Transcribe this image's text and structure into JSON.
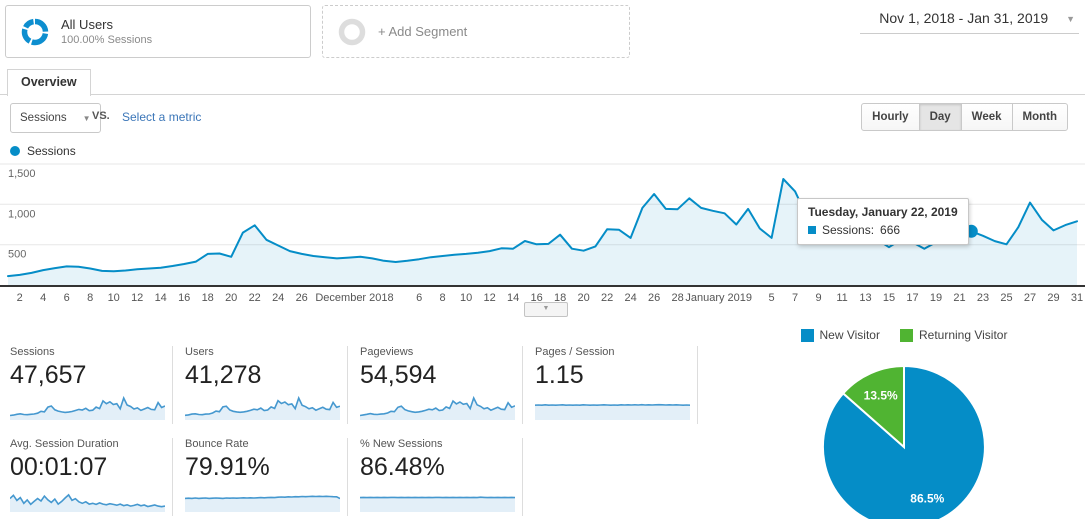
{
  "colors": {
    "chart_blue": "#058dc7",
    "pie_green": "#50b432",
    "link_blue": "#3b76b8",
    "spark_fill": "#e3eff8",
    "spark_line": "#4598cf"
  },
  "header": {
    "segment_all_users": {
      "title": "All Users",
      "subtitle": "100.00% Sessions"
    },
    "add_segment_label": "+ Add Segment",
    "date_range": "Nov 1, 2018 - Jan 31, 2019"
  },
  "tabs": {
    "overview": "Overview"
  },
  "controls": {
    "metric_dropdown": "Sessions",
    "vs_label": "VS.",
    "select_metric_link": "Select a metric",
    "granularity": [
      {
        "label": "Hourly"
      },
      {
        "label": "Day"
      },
      {
        "label": "Week"
      },
      {
        "label": "Month"
      }
    ],
    "granularity_active": "Day"
  },
  "timeline_legend": "Sessions",
  "tooltip": {
    "title": "Tuesday, January 22, 2019",
    "series": "Sessions:",
    "value": "666"
  },
  "chart_data": [
    {
      "type": "area",
      "title": "Sessions over time (daily)",
      "ylabel": "Sessions",
      "ylim": [
        0,
        1500
      ],
      "yticks": [
        500,
        1000,
        1500
      ],
      "ytick_labels": [
        "500",
        "1,000",
        "1,500"
      ],
      "x_start_date": "Nov 1, 2018",
      "x_end_date": "Jan 31, 2019",
      "grid": "horizontal",
      "legend_position": "top-left",
      "x_ticks": [
        {
          "d": 1,
          "label": "2"
        },
        {
          "d": 3,
          "label": "4"
        },
        {
          "d": 5,
          "label": "6"
        },
        {
          "d": 7,
          "label": "8"
        },
        {
          "d": 9,
          "label": "10"
        },
        {
          "d": 11,
          "label": "12"
        },
        {
          "d": 13,
          "label": "14"
        },
        {
          "d": 15,
          "label": "16"
        },
        {
          "d": 17,
          "label": "18"
        },
        {
          "d": 19,
          "label": "20"
        },
        {
          "d": 21,
          "label": "22"
        },
        {
          "d": 23,
          "label": "24"
        },
        {
          "d": 25,
          "label": "26"
        },
        {
          "d": 29.5,
          "label": "December 2018"
        },
        {
          "d": 35,
          "label": "6"
        },
        {
          "d": 37,
          "label": "8"
        },
        {
          "d": 39,
          "label": "10"
        },
        {
          "d": 41,
          "label": "12"
        },
        {
          "d": 43,
          "label": "14"
        },
        {
          "d": 45,
          "label": "16"
        },
        {
          "d": 47,
          "label": "18"
        },
        {
          "d": 49,
          "label": "20"
        },
        {
          "d": 51,
          "label": "22"
        },
        {
          "d": 53,
          "label": "24"
        },
        {
          "d": 55,
          "label": "26"
        },
        {
          "d": 57,
          "label": "28"
        },
        {
          "d": 60.5,
          "label": "January 2019"
        },
        {
          "d": 65,
          "label": "5"
        },
        {
          "d": 67,
          "label": "7"
        },
        {
          "d": 69,
          "label": "9"
        },
        {
          "d": 71,
          "label": "11"
        },
        {
          "d": 73,
          "label": "13"
        },
        {
          "d": 75,
          "label": "15"
        },
        {
          "d": 77,
          "label": "17"
        },
        {
          "d": 79,
          "label": "19"
        },
        {
          "d": 81,
          "label": "21"
        },
        {
          "d": 83,
          "label": "23"
        },
        {
          "d": 85,
          "label": "25"
        },
        {
          "d": 87,
          "label": "27"
        },
        {
          "d": 89,
          "label": "29"
        },
        {
          "d": 91,
          "label": "31"
        }
      ],
      "series": [
        {
          "name": "Sessions",
          "values": [
            110,
            125,
            150,
            185,
            210,
            230,
            225,
            205,
            175,
            170,
            180,
            195,
            205,
            215,
            235,
            260,
            290,
            385,
            390,
            350,
            650,
            740,
            560,
            490,
            420,
            385,
            360,
            345,
            330,
            340,
            350,
            330,
            300,
            285,
            300,
            320,
            345,
            360,
            375,
            385,
            400,
            420,
            455,
            450,
            545,
            505,
            510,
            623,
            450,
            425,
            478,
            690,
            685,
            584,
            956,
            1128,
            943,
            940,
            1075,
            956,
            920,
            889,
            750,
            943,
            700,
            584,
            1314,
            1160,
            850,
            743,
            660,
            560,
            640,
            590,
            560,
            470,
            560,
            530,
            450,
            530,
            620,
            690,
            666,
            610,
            544,
            505,
            717,
            1022,
            810,
            677,
            743,
            790
          ]
        }
      ],
      "highlight": {
        "date": "Tuesday, January 22, 2019",
        "value": 666,
        "day_index": 82
      }
    },
    {
      "type": "pie",
      "title": "New vs Returning Visitors",
      "legend_position": "top",
      "labels": [
        "New Visitor",
        "Returning Visitor"
      ],
      "values": [
        86.5,
        13.5
      ],
      "value_labels": [
        "86.5%",
        "13.5%"
      ],
      "colors": [
        "#058dc7",
        "#50b432"
      ]
    }
  ],
  "metrics": {
    "row1": [
      {
        "label": "Sessions",
        "value": "47,657",
        "spark": [
          0.08,
          0.1,
          0.14,
          0.17,
          0.13,
          0.12,
          0.14,
          0.16,
          0.2,
          0.3,
          0.27,
          0.52,
          0.58,
          0.38,
          0.31,
          0.27,
          0.24,
          0.26,
          0.29,
          0.34,
          0.4,
          0.37,
          0.46,
          0.33,
          0.36,
          0.52,
          0.44,
          0.85,
          0.7,
          0.8,
          0.66,
          0.7,
          0.43,
          1.0,
          0.63,
          0.55,
          0.42,
          0.48,
          0.35,
          0.42,
          0.5,
          0.4,
          0.38,
          0.76,
          0.5,
          0.58
        ]
      },
      {
        "label": "Users",
        "value": "41,278",
        "spark": [
          0.09,
          0.11,
          0.15,
          0.17,
          0.13,
          0.12,
          0.15,
          0.16,
          0.21,
          0.31,
          0.28,
          0.53,
          0.57,
          0.37,
          0.3,
          0.27,
          0.25,
          0.27,
          0.3,
          0.35,
          0.41,
          0.38,
          0.47,
          0.34,
          0.37,
          0.53,
          0.45,
          0.86,
          0.71,
          0.79,
          0.65,
          0.69,
          0.44,
          1.0,
          0.62,
          0.54,
          0.43,
          0.49,
          0.36,
          0.43,
          0.51,
          0.41,
          0.39,
          0.77,
          0.51,
          0.57
        ]
      },
      {
        "label": "Pageviews",
        "value": "54,594",
        "spark": [
          0.08,
          0.11,
          0.14,
          0.18,
          0.14,
          0.13,
          0.15,
          0.17,
          0.21,
          0.3,
          0.28,
          0.51,
          0.57,
          0.39,
          0.32,
          0.28,
          0.25,
          0.27,
          0.3,
          0.35,
          0.41,
          0.38,
          0.47,
          0.34,
          0.37,
          0.53,
          0.45,
          0.84,
          0.69,
          0.79,
          0.67,
          0.71,
          0.44,
          1.0,
          0.64,
          0.56,
          0.43,
          0.49,
          0.36,
          0.43,
          0.51,
          0.41,
          0.39,
          0.75,
          0.51,
          0.59
        ]
      },
      {
        "label": "Pages / Session",
        "value": "1.15",
        "spark": [
          0.62,
          0.63,
          0.62,
          0.64,
          0.62,
          0.63,
          0.62,
          0.63,
          0.64,
          0.62,
          0.63,
          0.62,
          0.63,
          0.62,
          0.64,
          0.63,
          0.62,
          0.63,
          0.62,
          0.63,
          0.64,
          0.63,
          0.62,
          0.63,
          0.62,
          0.64,
          0.63,
          0.64,
          0.63,
          0.64,
          0.63,
          0.65,
          0.63,
          0.64,
          0.63,
          0.64,
          0.65,
          0.64,
          0.63,
          0.64,
          0.63,
          0.64,
          0.63,
          0.62,
          0.63,
          0.62
        ]
      }
    ],
    "row2": [
      {
        "label": "Avg. Session Duration",
        "value": "00:01:07",
        "spark": [
          0.55,
          0.72,
          0.45,
          0.6,
          0.3,
          0.48,
          0.25,
          0.4,
          0.55,
          0.42,
          0.68,
          0.48,
          0.35,
          0.52,
          0.26,
          0.4,
          0.58,
          0.74,
          0.46,
          0.54,
          0.38,
          0.3,
          0.38,
          0.26,
          0.3,
          0.24,
          0.32,
          0.26,
          0.22,
          0.28,
          0.24,
          0.2,
          0.26,
          0.18,
          0.22,
          0.15,
          0.19,
          0.24,
          0.17,
          0.21,
          0.13,
          0.17,
          0.21,
          0.15,
          0.12,
          0.15
        ]
      },
      {
        "label": "Bounce Rate",
        "value": "79.91%",
        "spark": [
          0.56,
          0.57,
          0.56,
          0.58,
          0.56,
          0.57,
          0.58,
          0.56,
          0.57,
          0.58,
          0.57,
          0.56,
          0.58,
          0.57,
          0.58,
          0.57,
          0.58,
          0.59,
          0.58,
          0.59,
          0.58,
          0.59,
          0.6,
          0.59,
          0.6,
          0.61,
          0.6,
          0.62,
          0.63,
          0.62,
          0.64,
          0.63,
          0.65,
          0.64,
          0.66,
          0.65,
          0.66,
          0.67,
          0.66,
          0.67,
          0.66,
          0.67,
          0.66,
          0.65,
          0.64,
          0.55
        ]
      },
      {
        "label": "% New Sessions",
        "value": "86.48%",
        "spark": [
          0.6,
          0.61,
          0.6,
          0.61,
          0.6,
          0.61,
          0.6,
          0.61,
          0.6,
          0.61,
          0.61,
          0.6,
          0.61,
          0.6,
          0.61,
          0.6,
          0.61,
          0.6,
          0.61,
          0.6,
          0.61,
          0.6,
          0.61,
          0.61,
          0.6,
          0.61,
          0.6,
          0.61,
          0.6,
          0.61,
          0.6,
          0.61,
          0.6,
          0.61,
          0.6,
          0.62,
          0.61,
          0.6,
          0.61,
          0.6,
          0.61,
          0.6,
          0.61,
          0.6,
          0.61,
          0.6
        ]
      }
    ]
  }
}
